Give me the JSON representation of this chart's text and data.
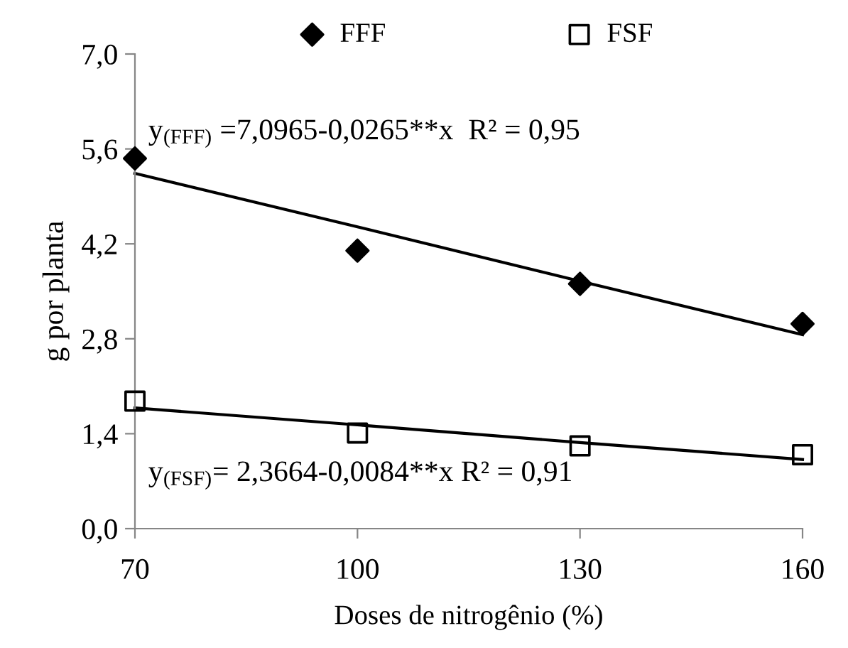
{
  "chart_data": {
    "type": "scatter",
    "xlabel": "Doses de nitrogênio (%)",
    "ylabel": "g por planta",
    "x": [
      70,
      100,
      130,
      160
    ],
    "series": [
      {
        "name": "FFF",
        "color": "#000000",
        "marker": "diamond",
        "values": [
          5.46,
          4.1,
          3.61,
          3.02
        ]
      },
      {
        "name": "FSF",
        "color": "#000000",
        "marker": "square",
        "values": [
          1.88,
          1.41,
          1.22,
          1.09
        ]
      },
      {
        "type": "line",
        "color": "#000000",
        "values": [
          5.24,
          4.45,
          3.65,
          2.86
        ],
        "marker": "none"
      },
      {
        "type": "line",
        "color": "#000000",
        "values": [
          1.78,
          1.53,
          1.27,
          1.02
        ],
        "marker": "none"
      }
    ],
    "xlim": [
      70,
      160
    ],
    "xticks": [
      70,
      100,
      130,
      160
    ],
    "ylim": [
      0,
      7
    ],
    "yticks": [
      {
        "value": 0,
        "label": "0,0"
      },
      {
        "value": 1.4,
        "label": "1,4"
      },
      {
        "value": 2.8,
        "label": "2,8"
      },
      {
        "value": 4.2,
        "label": "4,2"
      },
      {
        "value": 5.6,
        "label": "5,6"
      },
      {
        "value": 7,
        "label": "7,0"
      }
    ],
    "annotations": [
      "y$_{(FFF)}$ =7,0965-0,0265**x  R² = 0,95",
      "y$_{(FSF)}$= 2,3664-0,0084**x R² = 0,91"
    ],
    "grid": false,
    "legend": "top"
  }
}
